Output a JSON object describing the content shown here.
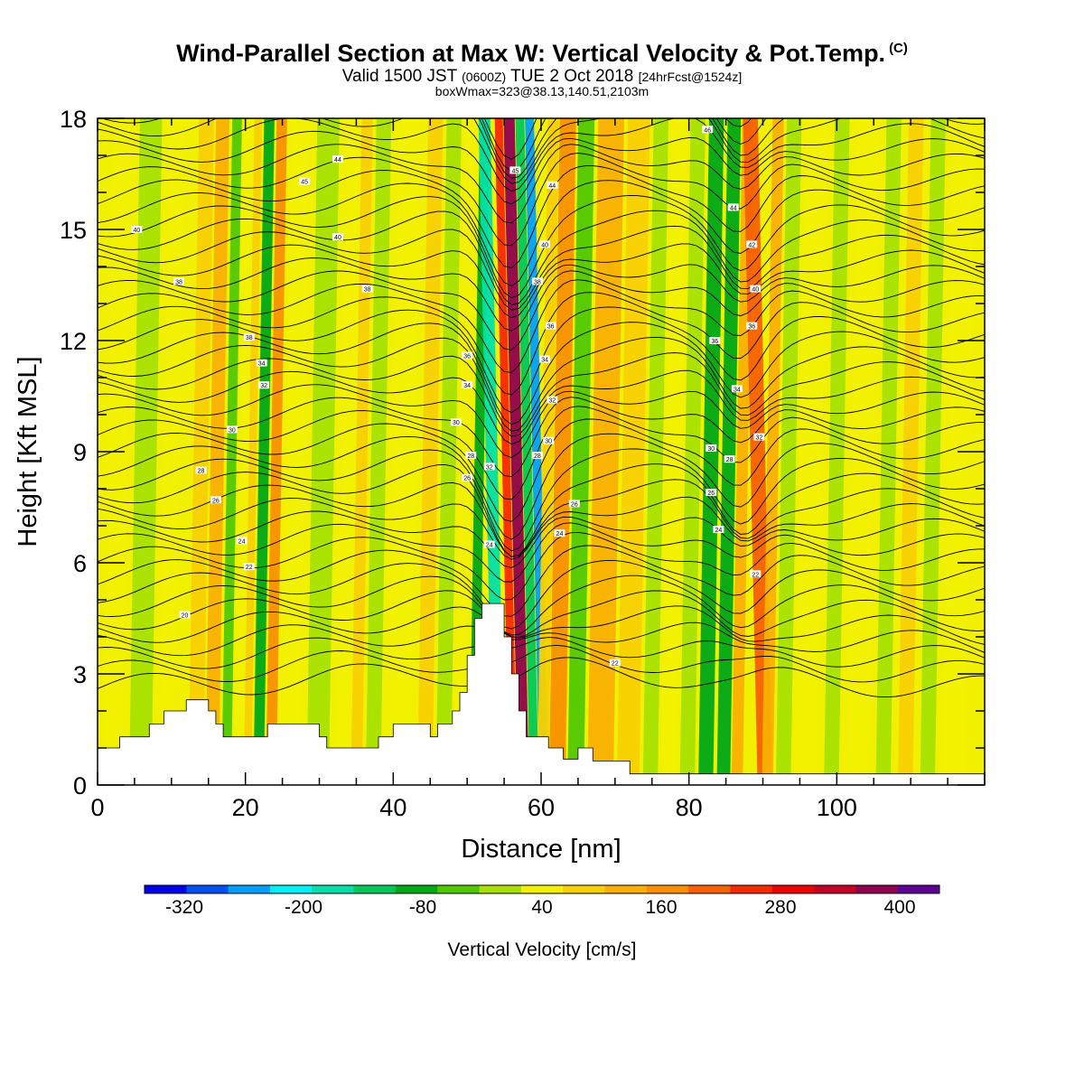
{
  "title": {
    "line1": "Wind-Parallel Section at Max W: Vertical Velocity & Pot.Temp.",
    "copyright": "(C)",
    "line2_main": "Valid 1500 JST",
    "line2_utc": "(0600Z)",
    "line2_date": "TUE 2 Oct 2018",
    "line2_fcst": "[24hrFcst@1524z]",
    "line3": "boxWmax=323@38.13,140.51,2103m"
  },
  "chart_data": {
    "type": "heatmap",
    "xlabel": "Distance [nm]",
    "ylabel": "Height [Kft MSL]",
    "xlim": [
      0,
      120
    ],
    "ylim": [
      0,
      18
    ],
    "xticks": [
      0,
      20,
      40,
      60,
      80,
      100
    ],
    "xtick_labels": [
      "0",
      "20",
      "40",
      "60",
      "80",
      "100"
    ],
    "yticks": [
      0,
      3,
      6,
      9,
      12,
      15,
      18
    ],
    "ytick_labels": [
      "0",
      "3",
      "6",
      "9",
      "12",
      "15",
      "18"
    ],
    "colorbar": {
      "label": "Vertical Velocity [cm/s]",
      "min": -360,
      "max": 440,
      "step": 40,
      "tick_values": [
        -320,
        -200,
        -80,
        40,
        160,
        280,
        400
      ],
      "tick_labels": [
        "-320",
        "-200",
        "-80",
        "40",
        "160",
        "280",
        "400"
      ],
      "colors": [
        "#0000f0",
        "#0050f8",
        "#00a0f8",
        "#00f0f8",
        "#00e0a8",
        "#00c858",
        "#00a818",
        "#50c800",
        "#a8e000",
        "#f0f000",
        "#f8d000",
        "#f8b000",
        "#f89000",
        "#f86000",
        "#f82800",
        "#f00000",
        "#c80028",
        "#900050",
        "#600090"
      ]
    },
    "terrain_kft": [
      [
        0,
        1.0
      ],
      [
        3,
        1.0
      ],
      [
        3,
        1.3
      ],
      [
        7,
        1.3
      ],
      [
        7,
        1.65
      ],
      [
        9,
        1.65
      ],
      [
        9,
        2.0
      ],
      [
        12,
        2.0
      ],
      [
        12,
        2.3
      ],
      [
        15,
        2.3
      ],
      [
        15,
        2.0
      ],
      [
        16,
        2.0
      ],
      [
        16,
        1.65
      ],
      [
        17,
        1.65
      ],
      [
        17,
        1.3
      ],
      [
        23,
        1.3
      ],
      [
        23,
        1.65
      ],
      [
        30,
        1.65
      ],
      [
        30,
        1.3
      ],
      [
        31,
        1.3
      ],
      [
        31,
        1.0
      ],
      [
        38,
        1.0
      ],
      [
        38,
        1.3
      ],
      [
        40,
        1.3
      ],
      [
        40,
        1.65
      ],
      [
        45,
        1.65
      ],
      [
        45,
        1.3
      ],
      [
        46,
        1.3
      ],
      [
        46,
        1.65
      ],
      [
        48,
        1.65
      ],
      [
        48,
        2.0
      ],
      [
        49,
        2.0
      ],
      [
        49,
        2.5
      ],
      [
        50,
        2.5
      ],
      [
        50,
        3.5
      ],
      [
        51,
        3.5
      ],
      [
        51,
        4.5
      ],
      [
        52,
        4.5
      ],
      [
        52,
        4.9
      ],
      [
        55,
        4.9
      ],
      [
        55,
        4.0
      ],
      [
        56,
        4.0
      ],
      [
        56,
        3.0
      ],
      [
        57,
        3.0
      ],
      [
        57,
        2.0
      ],
      [
        58,
        2.0
      ],
      [
        58,
        1.3
      ],
      [
        61,
        1.3
      ],
      [
        61,
        1.0
      ],
      [
        63,
        1.0
      ],
      [
        63,
        0.7
      ],
      [
        65,
        0.7
      ],
      [
        65,
        1.0
      ],
      [
        67,
        1.0
      ],
      [
        67,
        0.65
      ],
      [
        72,
        0.65
      ],
      [
        72,
        0.3
      ],
      [
        120,
        0.3
      ]
    ],
    "shading_columns": [
      {
        "x": 1.5,
        "w": 2.5,
        "v": 0
      },
      {
        "x": 5,
        "w": 3,
        "v": -40
      },
      {
        "x": 9,
        "w": 2,
        "v": 0
      },
      {
        "x": 13,
        "w": 2,
        "v": 50
      },
      {
        "x": 15.3,
        "w": 1.8,
        "v": 110
      },
      {
        "x": 17.5,
        "w": 1.3,
        "v": -80
      },
      {
        "x": 19.3,
        "w": 1,
        "v": 20
      },
      {
        "x": 20.5,
        "w": 1,
        "v": 75
      },
      {
        "x": 21.8,
        "w": 1.4,
        "v": -100
      },
      {
        "x": 23.5,
        "w": 1.4,
        "v": 120
      },
      {
        "x": 25.5,
        "w": 2.5,
        "v": 0
      },
      {
        "x": 29,
        "w": 3,
        "v": -40
      },
      {
        "x": 33,
        "w": 2,
        "v": 10
      },
      {
        "x": 35,
        "w": 1.5,
        "v": 60
      },
      {
        "x": 37,
        "w": 2,
        "v": -40
      },
      {
        "x": 40,
        "w": 3,
        "v": 0
      },
      {
        "x": 44,
        "w": 2,
        "v": 40
      },
      {
        "x": 46.5,
        "w": 2,
        "v": -40
      },
      {
        "x": 49,
        "w": 1.5,
        "v": 0
      },
      {
        "x": 51,
        "w": 1.3,
        "v": -120
      },
      {
        "x": 52.5,
        "w": 1.6,
        "v": -200
      },
      {
        "x": 54.7,
        "w": 1.1,
        "v": 200
      },
      {
        "x": 55.9,
        "w": 1.5,
        "v": 330
      },
      {
        "x": 57.5,
        "w": 1.2,
        "v": -160
      },
      {
        "x": 58.8,
        "w": 1.2,
        "v": -260
      },
      {
        "x": 60.2,
        "w": 1.5,
        "v": 60
      },
      {
        "x": 61.8,
        "w": 2.2,
        "v": 120
      },
      {
        "x": 64.3,
        "w": 2.2,
        "v": -70
      },
      {
        "x": 67,
        "w": 3.5,
        "v": 100
      },
      {
        "x": 71,
        "w": 3,
        "v": 40
      },
      {
        "x": 74.5,
        "w": 2,
        "v": -40
      },
      {
        "x": 77,
        "w": 2,
        "v": 10
      },
      {
        "x": 79.5,
        "w": 2,
        "v": -40
      },
      {
        "x": 82,
        "w": 2,
        "v": -100
      },
      {
        "x": 84.5,
        "w": 1.8,
        "v": -120
      },
      {
        "x": 86.5,
        "w": 1.5,
        "v": 80
      },
      {
        "x": 88.3,
        "w": 2,
        "v": 180
      },
      {
        "x": 90.6,
        "w": 1.5,
        "v": 100
      },
      {
        "x": 92.5,
        "w": 2,
        "v": -40
      },
      {
        "x": 95,
        "w": 3,
        "v": 10
      },
      {
        "x": 99,
        "w": 2,
        "v": -40
      },
      {
        "x": 102,
        "w": 3,
        "v": 10
      },
      {
        "x": 106,
        "w": 2,
        "v": -40
      },
      {
        "x": 109,
        "w": 2,
        "v": 40
      },
      {
        "x": 112,
        "w": 2,
        "v": -40
      },
      {
        "x": 115,
        "w": 3,
        "v": 10
      }
    ],
    "theta_labels": [
      {
        "x": 5.3,
        "y": 15.0,
        "t": "40"
      },
      {
        "x": 11,
        "y": 13.6,
        "t": "38"
      },
      {
        "x": 28,
        "y": 16.3,
        "t": "45"
      },
      {
        "x": 32.5,
        "y": 16.9,
        "t": "44"
      },
      {
        "x": 32.5,
        "y": 14.8,
        "t": "40"
      },
      {
        "x": 36.5,
        "y": 13.4,
        "t": "38"
      },
      {
        "x": 20.5,
        "y": 12.1,
        "t": "38"
      },
      {
        "x": 22.2,
        "y": 11.4,
        "t": "34"
      },
      {
        "x": 22.5,
        "y": 10.8,
        "t": "32"
      },
      {
        "x": 18.2,
        "y": 9.6,
        "t": "30"
      },
      {
        "x": 14,
        "y": 8.5,
        "t": "28"
      },
      {
        "x": 16,
        "y": 7.7,
        "t": "26"
      },
      {
        "x": 19.5,
        "y": 6.6,
        "t": "24"
      },
      {
        "x": 20.5,
        "y": 5.9,
        "t": "22"
      },
      {
        "x": 11.8,
        "y": 4.6,
        "t": "20"
      },
      {
        "x": 50,
        "y": 11.6,
        "t": "36"
      },
      {
        "x": 50,
        "y": 10.8,
        "t": "34"
      },
      {
        "x": 48.5,
        "y": 9.8,
        "t": "30"
      },
      {
        "x": 50.5,
        "y": 8.9,
        "t": "28"
      },
      {
        "x": 50,
        "y": 8.3,
        "t": "26"
      },
      {
        "x": 53,
        "y": 8.6,
        "t": "32"
      },
      {
        "x": 53,
        "y": 6.5,
        "t": "24"
      },
      {
        "x": 56.5,
        "y": 16.6,
        "t": "45"
      },
      {
        "x": 61.5,
        "y": 16.2,
        "t": "44"
      },
      {
        "x": 60.5,
        "y": 14.6,
        "t": "40"
      },
      {
        "x": 59.5,
        "y": 13.6,
        "t": "38"
      },
      {
        "x": 61.3,
        "y": 12.4,
        "t": "36"
      },
      {
        "x": 60.5,
        "y": 11.5,
        "t": "34"
      },
      {
        "x": 61.5,
        "y": 10.4,
        "t": "32"
      },
      {
        "x": 61,
        "y": 9.3,
        "t": "30"
      },
      {
        "x": 59.5,
        "y": 8.9,
        "t": "28"
      },
      {
        "x": 64.5,
        "y": 7.6,
        "t": "26"
      },
      {
        "x": 62.5,
        "y": 6.8,
        "t": "24"
      },
      {
        "x": 70,
        "y": 3.3,
        "t": "22"
      },
      {
        "x": 82.5,
        "y": 17.7,
        "t": "46"
      },
      {
        "x": 86,
        "y": 15.6,
        "t": "44"
      },
      {
        "x": 88.5,
        "y": 14.6,
        "t": "42"
      },
      {
        "x": 89,
        "y": 13.4,
        "t": "40"
      },
      {
        "x": 88.5,
        "y": 12.4,
        "t": "36"
      },
      {
        "x": 83.5,
        "y": 12.0,
        "t": "36"
      },
      {
        "x": 86.5,
        "y": 10.7,
        "t": "34"
      },
      {
        "x": 89.5,
        "y": 9.4,
        "t": "32"
      },
      {
        "x": 83,
        "y": 9.1,
        "t": "30"
      },
      {
        "x": 85.5,
        "y": 8.8,
        "t": "28"
      },
      {
        "x": 83,
        "y": 7.9,
        "t": "26"
      },
      {
        "x": 84,
        "y": 6.9,
        "t": "24"
      },
      {
        "x": 89,
        "y": 5.7,
        "t": "22"
      }
    ]
  }
}
